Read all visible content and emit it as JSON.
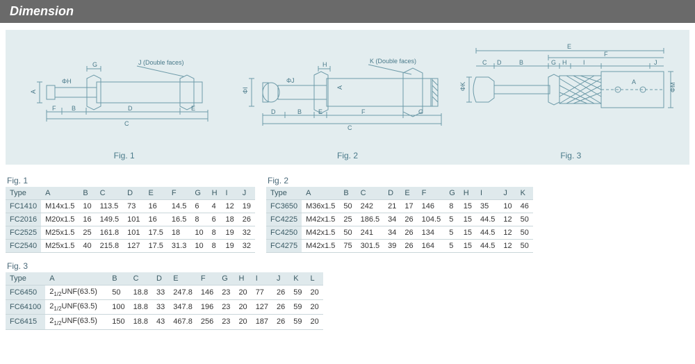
{
  "header": {
    "title": "Dimension"
  },
  "diagram": {
    "background": "#e3edef",
    "stroke": "#6d9aa8",
    "text_color": "#4a7a8a",
    "figs": [
      {
        "caption": "Fig. 1",
        "helper": "J (Double faces)"
      },
      {
        "caption": "Fig. 2",
        "helper": "K (Double faces)"
      },
      {
        "caption": "Fig. 3",
        "helper": ""
      }
    ]
  },
  "tables": {
    "fig1": {
      "title": "Fig. 1",
      "columns": [
        "Type",
        "A",
        "B",
        "C",
        "D",
        "E",
        "F",
        "G",
        "H",
        "I",
        "J"
      ],
      "rows": [
        [
          "FC1410",
          "M14x1.5",
          "10",
          "113.5",
          "73",
          "16",
          "14.5",
          "6",
          "4",
          "12",
          "19"
        ],
        [
          "FC2016",
          "M20x1.5",
          "16",
          "149.5",
          "101",
          "16",
          "16.5",
          "8",
          "6",
          "18",
          "26"
        ],
        [
          "FC2525",
          "M25x1.5",
          "25",
          "161.8",
          "101",
          "17.5",
          "18",
          "10",
          "8",
          "19",
          "32"
        ],
        [
          "FC2540",
          "M25x1.5",
          "40",
          "215.8",
          "127",
          "17.5",
          "31.3",
          "10",
          "8",
          "19",
          "32"
        ]
      ]
    },
    "fig2": {
      "title": "Fig. 2",
      "columns": [
        "Type",
        "A",
        "B",
        "C",
        "D",
        "E",
        "F",
        "G",
        "H",
        "I",
        "J",
        "K"
      ],
      "rows": [
        [
          "FC3650",
          "M36x1.5",
          "50",
          "242",
          "21",
          "17",
          "146",
          "8",
          "15",
          "35",
          "10",
          "46"
        ],
        [
          "FC4225",
          "M42x1.5",
          "25",
          "186.5",
          "34",
          "26",
          "104.5",
          "5",
          "15",
          "44.5",
          "12",
          "50"
        ],
        [
          "FC4250",
          "M42x1.5",
          "50",
          "241",
          "34",
          "26",
          "134",
          "5",
          "15",
          "44.5",
          "12",
          "50"
        ],
        [
          "FC4275",
          "M42x1.5",
          "75",
          "301.5",
          "39",
          "26",
          "164",
          "5",
          "15",
          "44.5",
          "12",
          "50"
        ]
      ]
    },
    "fig3": {
      "title": "Fig. 3",
      "columns": [
        "Type",
        "A",
        "B",
        "C",
        "D",
        "E",
        "F",
        "G",
        "H",
        "I",
        "J",
        "K",
        "L"
      ],
      "rows": [
        [
          "FC6450",
          "2½UNF(63.5)",
          "50",
          "18.8",
          "33",
          "247.8",
          "146",
          "23",
          "20",
          "77",
          "26",
          "59",
          "20"
        ],
        [
          "FC64100",
          "2½UNF(63.5)",
          "100",
          "18.8",
          "33",
          "347.8",
          "196",
          "23",
          "20",
          "127",
          "26",
          "59",
          "20"
        ],
        [
          "FC6415",
          "2½UNF(63.5)",
          "150",
          "18.8",
          "43",
          "467.8",
          "256",
          "23",
          "20",
          "187",
          "26",
          "59",
          "20"
        ]
      ]
    }
  },
  "colors": {
    "header_bg": "#6a6a6a",
    "header_fg": "#ffffff",
    "panel_bg": "#e3edef",
    "table_header_bg": "#dfe9ec",
    "table_border": "#c9d6da",
    "stroke": "#6d9aa8"
  },
  "fontsizes": {
    "header": 18,
    "body": 11,
    "caption": 12
  }
}
